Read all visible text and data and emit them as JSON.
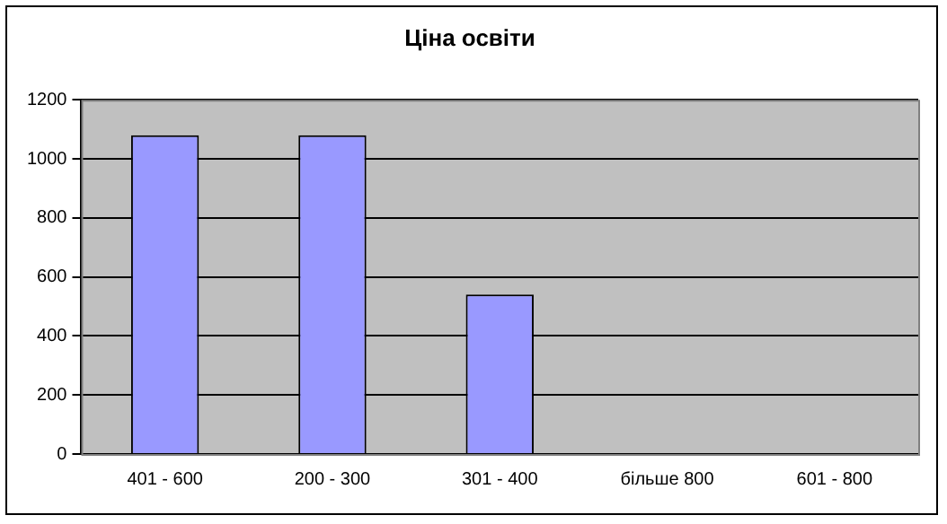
{
  "chart_data": {
    "type": "bar",
    "title": "Ціна освіти",
    "categories": [
      "401 - 600",
      "200 - 300",
      "301 - 400",
      "більше 800",
      "601 - 800"
    ],
    "values": [
      1080,
      1080,
      540,
      0,
      0
    ],
    "color": "#9999ff",
    "ylim": [
      0,
      1200
    ],
    "yticks": [
      0,
      200,
      400,
      600,
      800,
      1000,
      1200
    ],
    "grid": "y"
  }
}
